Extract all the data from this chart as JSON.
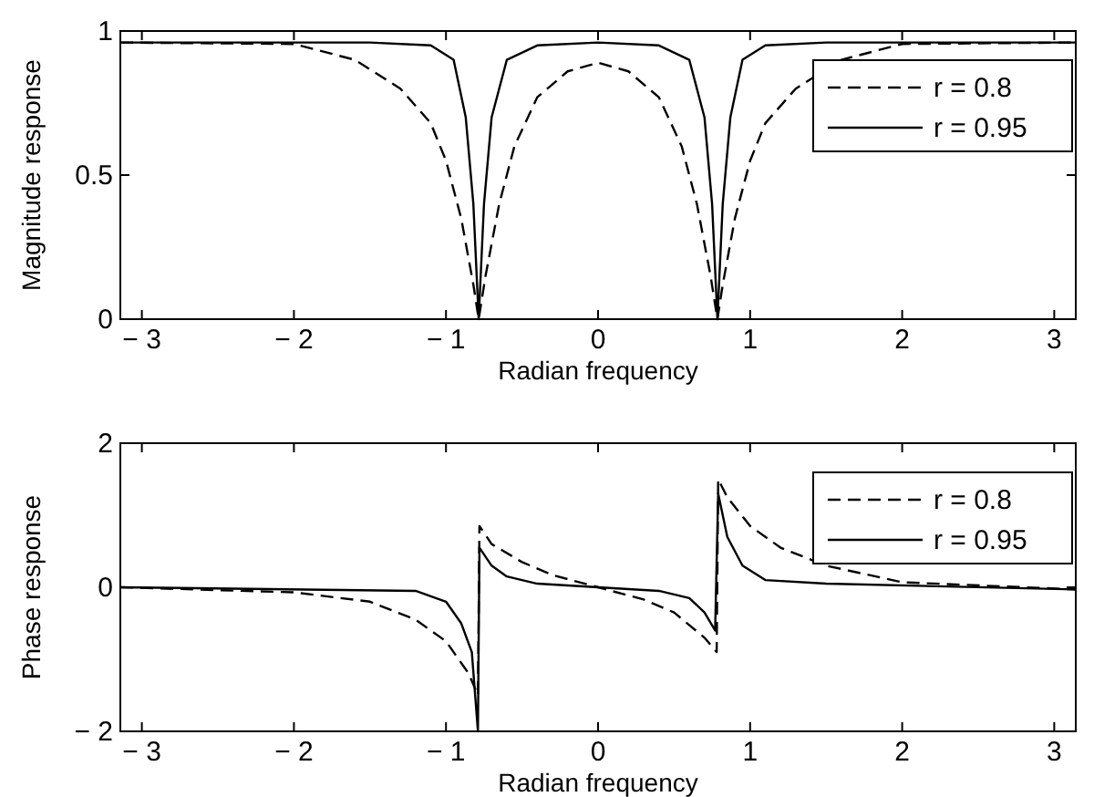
{
  "chart_data": [
    {
      "type": "line",
      "xlabel": "Radian frequency",
      "ylabel": "Magnitude response",
      "xlim": [
        -3.1416,
        3.1416
      ],
      "xticks": [
        {
          "value": -3,
          "label": "− 3"
        },
        {
          "value": -2,
          "label": "− 2"
        },
        {
          "value": -1,
          "label": "− 1"
        },
        0,
        1,
        2,
        3
      ],
      "ylim": [
        0,
        1
      ],
      "yticks": [
        0,
        0.5,
        1
      ],
      "grid": false,
      "legend": "top right",
      "series": [
        {
          "name": "r = 0.8",
          "color": "#000000",
          "line_style": "dashed",
          "x": [
            -3.1416,
            -2,
            -1.6,
            -1.3,
            -1.1,
            -1,
            -0.9,
            -0.82,
            -0.785,
            -0.74,
            -0.65,
            -0.55,
            -0.4,
            -0.2,
            0,
            0.2,
            0.4,
            0.55,
            0.65,
            0.74,
            0.785,
            0.82,
            0.9,
            1,
            1.1,
            1.3,
            1.6,
            2,
            3.1416
          ],
          "values": [
            0.96,
            0.955,
            0.9,
            0.8,
            0.68,
            0.55,
            0.35,
            0.12,
            0,
            0.15,
            0.4,
            0.6,
            0.77,
            0.86,
            0.89,
            0.86,
            0.77,
            0.6,
            0.4,
            0.15,
            0,
            0.12,
            0.35,
            0.55,
            0.68,
            0.8,
            0.9,
            0.955,
            0.96
          ]
        },
        {
          "name": "r = 0.95",
          "color": "#000000",
          "line_style": "solid",
          "x": [
            -3.1416,
            -1.5,
            -1.1,
            -0.95,
            -0.87,
            -0.82,
            -0.785,
            -0.75,
            -0.7,
            -0.6,
            -0.4,
            0,
            0.4,
            0.6,
            0.7,
            0.75,
            0.785,
            0.82,
            0.87,
            0.95,
            1.1,
            1.5,
            3.1416
          ],
          "values": [
            0.96,
            0.96,
            0.95,
            0.9,
            0.7,
            0.4,
            0,
            0.4,
            0.7,
            0.9,
            0.95,
            0.96,
            0.95,
            0.9,
            0.7,
            0.4,
            0,
            0.4,
            0.7,
            0.9,
            0.95,
            0.96,
            0.96
          ]
        }
      ]
    },
    {
      "type": "line",
      "xlabel": "Radian frequency",
      "ylabel": "Phase response",
      "xlim": [
        -3.1416,
        3.1416
      ],
      "xticks": [
        {
          "value": -3,
          "label": "− 3"
        },
        {
          "value": -2,
          "label": "− 2"
        },
        {
          "value": -1,
          "label": "− 1"
        },
        0,
        1,
        2,
        3
      ],
      "ylim": [
        -2,
        2
      ],
      "yticks": [
        {
          "value": -2,
          "label": "− 2"
        },
        0,
        2
      ],
      "grid": false,
      "legend": "top right",
      "series": [
        {
          "name": "r = 0.8",
          "color": "#000000",
          "line_style": "dashed",
          "x": [
            -3.1416,
            -2,
            -1.5,
            -1.2,
            -1,
            -0.85,
            -0.79,
            -0.78,
            -0.7,
            -0.5,
            -0.3,
            0,
            0.3,
            0.5,
            0.7,
            0.78,
            0.79,
            0.85,
            1,
            1.2,
            1.5,
            2,
            3.1416
          ],
          "values": [
            0,
            -0.07,
            -0.2,
            -0.45,
            -0.75,
            -1.2,
            -1.5,
            0.85,
            0.6,
            0.35,
            0.17,
            0,
            -0.17,
            -0.35,
            -0.7,
            -0.9,
            1.5,
            1.25,
            0.85,
            0.55,
            0.3,
            0.07,
            -0.03
          ]
        },
        {
          "name": "r = 0.95",
          "color": "#000000",
          "line_style": "solid",
          "x": [
            -3.1416,
            -1.2,
            -1,
            -0.9,
            -0.83,
            -0.79,
            -0.78,
            -0.7,
            -0.6,
            -0.4,
            0,
            0.4,
            0.6,
            0.7,
            0.77,
            0.79,
            0.85,
            0.95,
            1.1,
            1.5,
            3.1416
          ],
          "values": [
            0,
            -0.05,
            -0.2,
            -0.5,
            -0.9,
            -2,
            0.55,
            0.3,
            0.15,
            0.05,
            0,
            -0.05,
            -0.15,
            -0.35,
            -0.6,
            1.3,
            0.7,
            0.3,
            0.1,
            0.05,
            -0.03
          ]
        }
      ]
    }
  ]
}
